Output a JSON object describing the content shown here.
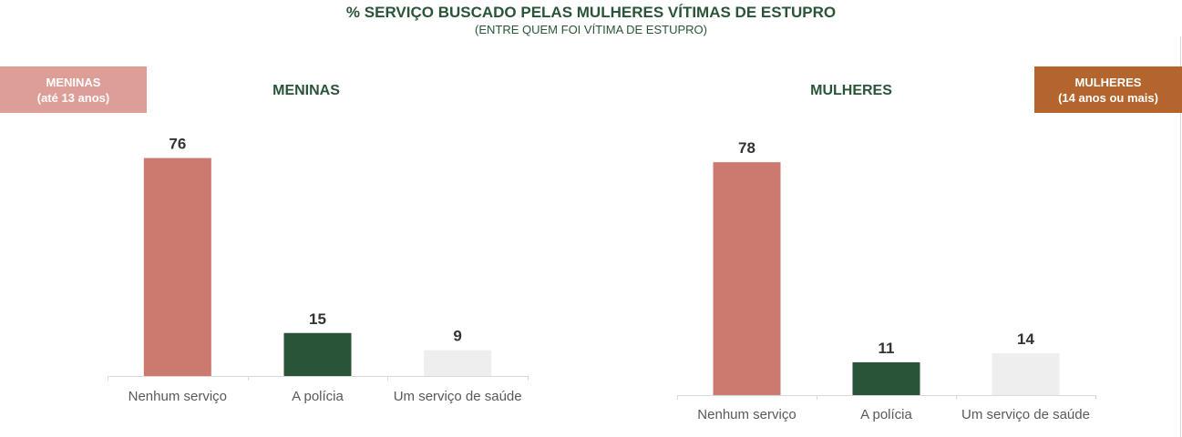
{
  "title": "% SERVIÇO BUSCADO PELAS MULHERES VÍTIMAS DE ESTUPRO",
  "subtitle": "(ENTRE QUEM FOI VÍTIMA DE ESTUPRO)",
  "colors": {
    "nenhum": "#cc7a70",
    "policia": "#2a5437",
    "saude": "#eeeeee",
    "badge_meninas": "#de9e98",
    "badge_mulheres": "#b3652d",
    "title_green": "#2a5437"
  },
  "badges": {
    "left": {
      "line1": "MENINAS",
      "line2": "(até 13 anos)"
    },
    "right": {
      "line1": "MULHERES",
      "line2": "(14 anos ou mais)"
    }
  },
  "chart_data": [
    {
      "type": "bar",
      "title": "MENINAS",
      "categories": [
        "Nenhum serviço",
        "A polícia",
        "Um serviço de saúde"
      ],
      "values": [
        76,
        15,
        9
      ]
    },
    {
      "type": "bar",
      "title": "MULHERES",
      "categories": [
        "Nenhum serviço",
        "A polícia",
        "Um serviço de saúde"
      ],
      "values": [
        78,
        11,
        14
      ]
    }
  ]
}
